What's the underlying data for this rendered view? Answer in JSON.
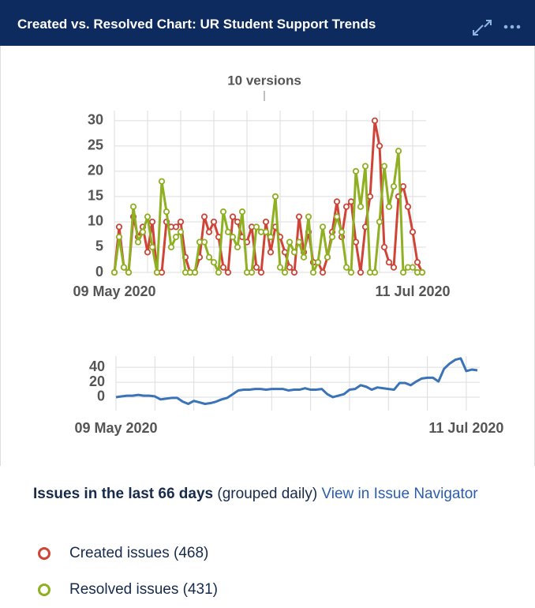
{
  "header": {
    "title": "Created vs. Resolved Chart: UR Student Support Trends"
  },
  "chart_data": [
    {
      "type": "line",
      "annotation": "10 versions",
      "categories": [
        "09 May 2020",
        null,
        null,
        null,
        null,
        null,
        null,
        null,
        null,
        null,
        null,
        null,
        null,
        null,
        null,
        null,
        null,
        null,
        null,
        null,
        null,
        null,
        null,
        null,
        null,
        null,
        null,
        null,
        null,
        null,
        null,
        null,
        null,
        null,
        null,
        null,
        null,
        null,
        null,
        null,
        null,
        null,
        null,
        null,
        null,
        null,
        null,
        null,
        null,
        null,
        null,
        null,
        null,
        null,
        null,
        null,
        null,
        null,
        null,
        null,
        null,
        null,
        null,
        "11 Jul 2020",
        null,
        null
      ],
      "series": [
        {
          "name": "Created issues (468)",
          "color": "#d04437",
          "values": [
            0,
            9,
            1,
            0,
            11,
            7,
            9,
            4,
            10,
            0,
            0,
            10,
            9,
            9,
            10,
            3,
            0,
            0,
            3,
            11,
            8,
            10,
            7,
            1,
            0,
            11,
            10,
            7,
            6,
            9,
            1,
            0,
            10,
            4,
            9,
            7,
            4,
            1,
            0,
            11,
            4,
            8,
            2,
            2,
            0,
            3,
            8,
            14,
            7,
            13,
            14,
            6,
            0,
            9,
            15,
            30,
            25,
            5,
            2,
            1,
            15,
            17,
            13,
            8,
            2,
            0
          ]
        },
        {
          "name": "Resolved issues (431)",
          "color": "#8eb021",
          "values": [
            0,
            7,
            1,
            0,
            13,
            6,
            8,
            11,
            5,
            0,
            18,
            12,
            5,
            7,
            8,
            0,
            0,
            0,
            6,
            6,
            3,
            2,
            0,
            12,
            8,
            7,
            5,
            12,
            0,
            0,
            9,
            8,
            8,
            7,
            15,
            1,
            0,
            6,
            4,
            6,
            3,
            11,
            0,
            2,
            9,
            3,
            7,
            11,
            8,
            1,
            0,
            20,
            13,
            21,
            0,
            0,
            10,
            21,
            13,
            17,
            24,
            0,
            1,
            1,
            0,
            0
          ]
        }
      ],
      "ylim": [
        0,
        32
      ],
      "yticks": [
        0,
        5,
        10,
        15,
        20,
        25,
        30
      ],
      "grid": true,
      "markers": true
    },
    {
      "type": "line",
      "categories": [
        "09 May 2020",
        null,
        null,
        null,
        null,
        null,
        null,
        null,
        null,
        null,
        null,
        null,
        null,
        null,
        null,
        null,
        null,
        null,
        null,
        null,
        null,
        null,
        null,
        null,
        null,
        null,
        null,
        null,
        null,
        null,
        null,
        null,
        null,
        null,
        null,
        null,
        null,
        null,
        null,
        null,
        null,
        null,
        null,
        null,
        null,
        null,
        null,
        null,
        null,
        null,
        null,
        null,
        null,
        null,
        null,
        null,
        null,
        null,
        null,
        null,
        null,
        null,
        null,
        "11 Jul 2020",
        null,
        null
      ],
      "series": [
        {
          "color": "#3b73b9",
          "values": [
            0,
            1,
            2,
            2,
            3,
            2,
            2,
            1,
            -3,
            -2,
            -1,
            -1,
            -6,
            -9,
            -5,
            -7,
            -9,
            -8,
            -6,
            -3,
            -1,
            4,
            9,
            10,
            10,
            11,
            11,
            10,
            11,
            11,
            11,
            9,
            10,
            10,
            12,
            10,
            10,
            11,
            4,
            0,
            2,
            4,
            10,
            11,
            16,
            14,
            10,
            13,
            12,
            11,
            10,
            19,
            19,
            16,
            21,
            25,
            26,
            26,
            21,
            38,
            45,
            50,
            52,
            35,
            37,
            36
          ]
        }
      ],
      "ylim": [
        -18,
        55
      ],
      "yticks": [
        0,
        20,
        40
      ],
      "grid": true,
      "markers": false
    }
  ],
  "summary": {
    "heading": "Issues in the last 66 days",
    "note": "(grouped daily)",
    "link": "View in Issue Navigator"
  }
}
